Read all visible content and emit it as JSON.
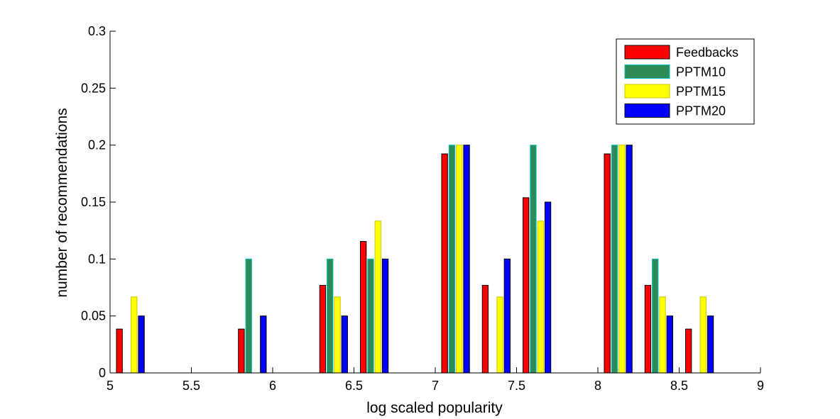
{
  "chart_data": {
    "type": "bar",
    "title": "",
    "xlabel": "log scaled popularity",
    "ylabel": "number of recommendations",
    "xlim": [
      5,
      9
    ],
    "ylim": [
      0,
      0.3
    ],
    "xticks": [
      "5",
      "5.5",
      "6",
      "6.5",
      "7",
      "7.5",
      "8",
      "8.5",
      "9"
    ],
    "yticks": [
      "0",
      "0.05",
      "0.1",
      "0.15",
      "0.2",
      "0.25",
      "0.3"
    ],
    "x": [
      5.125,
      5.375,
      5.625,
      5.875,
      6.125,
      6.375,
      6.625,
      6.875,
      7.125,
      7.375,
      7.625,
      7.875,
      8.125,
      8.375,
      8.625,
      8.875
    ],
    "series": [
      {
        "name": "Feedbacks",
        "color": "#ff0000",
        "edge": "#000000",
        "values": [
          0.0385,
          0,
          0,
          0.0385,
          0,
          0.0769,
          0.1154,
          0,
          0.1923,
          0.0769,
          0.1538,
          0,
          0.1923,
          0.0769,
          0.0385,
          0
        ]
      },
      {
        "name": "PPTM10",
        "color": "#2e8b57",
        "edge": "#00c0c0",
        "values": [
          0,
          0,
          0,
          0.1,
          0,
          0.1,
          0.1,
          0,
          0.2,
          0,
          0.2,
          0,
          0.2,
          0.1,
          0,
          0
        ]
      },
      {
        "name": "PPTM15",
        "color": "#ffff00",
        "edge": "#c8c800",
        "values": [
          0.0667,
          0,
          0,
          0,
          0,
          0.0667,
          0.1333,
          0,
          0.2,
          0.0667,
          0.1333,
          0,
          0.2,
          0.0667,
          0.0667,
          0
        ]
      },
      {
        "name": "PPTM20",
        "color": "#0000ff",
        "edge": "#000000",
        "values": [
          0.05,
          0,
          0,
          0.05,
          0,
          0.05,
          0.1,
          0,
          0.2,
          0.1,
          0.15,
          0,
          0.2,
          0.05,
          0.05,
          0
        ]
      }
    ],
    "grid": false,
    "legend_position": "top-right"
  }
}
